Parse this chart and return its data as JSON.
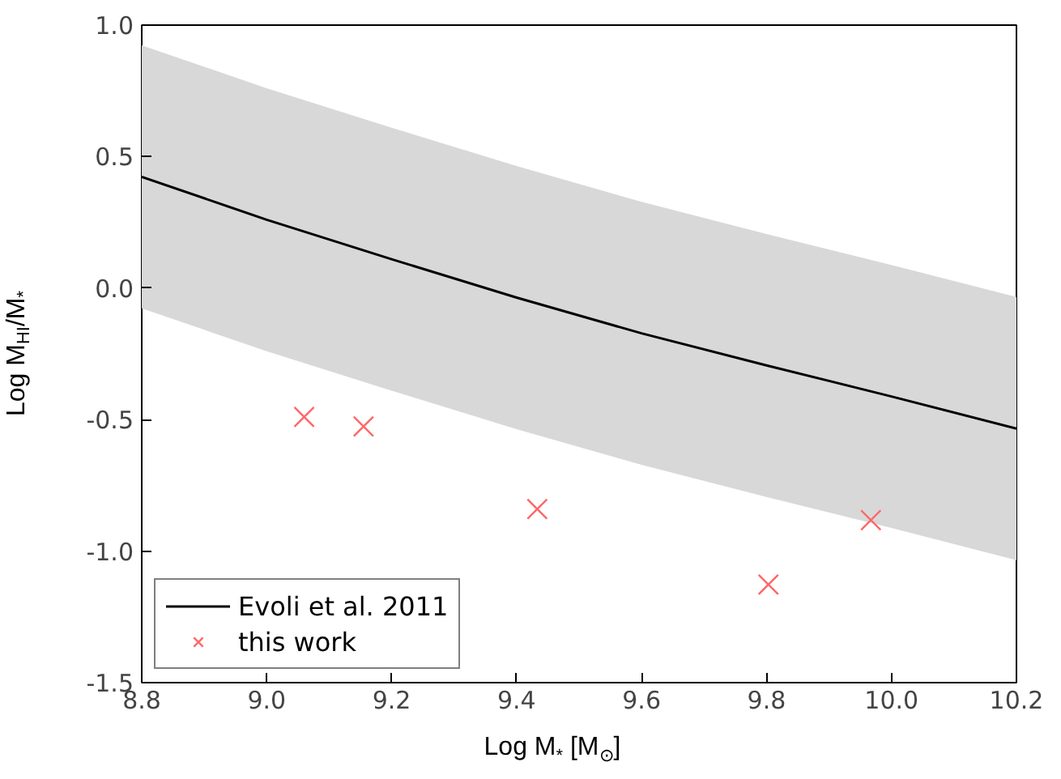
{
  "chart_data": {
    "type": "line",
    "xlabel": "Log M$_{*}$ [M$_{⊙}$]",
    "ylabel": "Log M$_{HI}$/M$_{*}$",
    "xlim": [
      8.8,
      10.2
    ],
    "ylim": [
      -1.5,
      1.0
    ],
    "xticks": [
      8.8,
      {
        "value": 9,
        "label": "9.0"
      },
      9.2,
      9.4,
      9.6,
      9.8,
      {
        "value": 10,
        "label": "10.0"
      },
      10.2
    ],
    "yticks": [
      -1.5,
      {
        "value": -1,
        "label": "-1.0"
      },
      -0.5,
      {
        "value": 0,
        "label": "0.0"
      },
      0.5,
      {
        "value": 1,
        "label": "1.0"
      }
    ],
    "grid": false,
    "legend": "bottom left",
    "series": [
      {
        "name": "Evoli et al. 2011",
        "color": "#000000",
        "line_style": "solid",
        "marker": "none",
        "x": [
          8.8,
          9.0,
          9.2,
          9.4,
          9.6,
          9.8,
          10.0,
          10.2
        ],
        "values": [
          0.423,
          0.26,
          0.11,
          -0.036,
          -0.172,
          -0.294,
          -0.412,
          -0.534
        ],
        "lower": [
          -0.077,
          -0.24,
          -0.39,
          -0.536,
          -0.672,
          -0.794,
          -0.912,
          -1.034
        ],
        "upper": [
          0.923,
          0.76,
          0.61,
          0.464,
          0.328,
          0.206,
          0.088,
          -0.034
        ]
      },
      {
        "name": "this work",
        "type": "scatter",
        "color": "#ff6666",
        "marker": "cross",
        "x": [
          9.06,
          9.155,
          9.433,
          9.803,
          9.967
        ],
        "values": [
          -0.49,
          -0.526,
          -0.84,
          -1.127,
          -0.882
        ]
      }
    ]
  }
}
